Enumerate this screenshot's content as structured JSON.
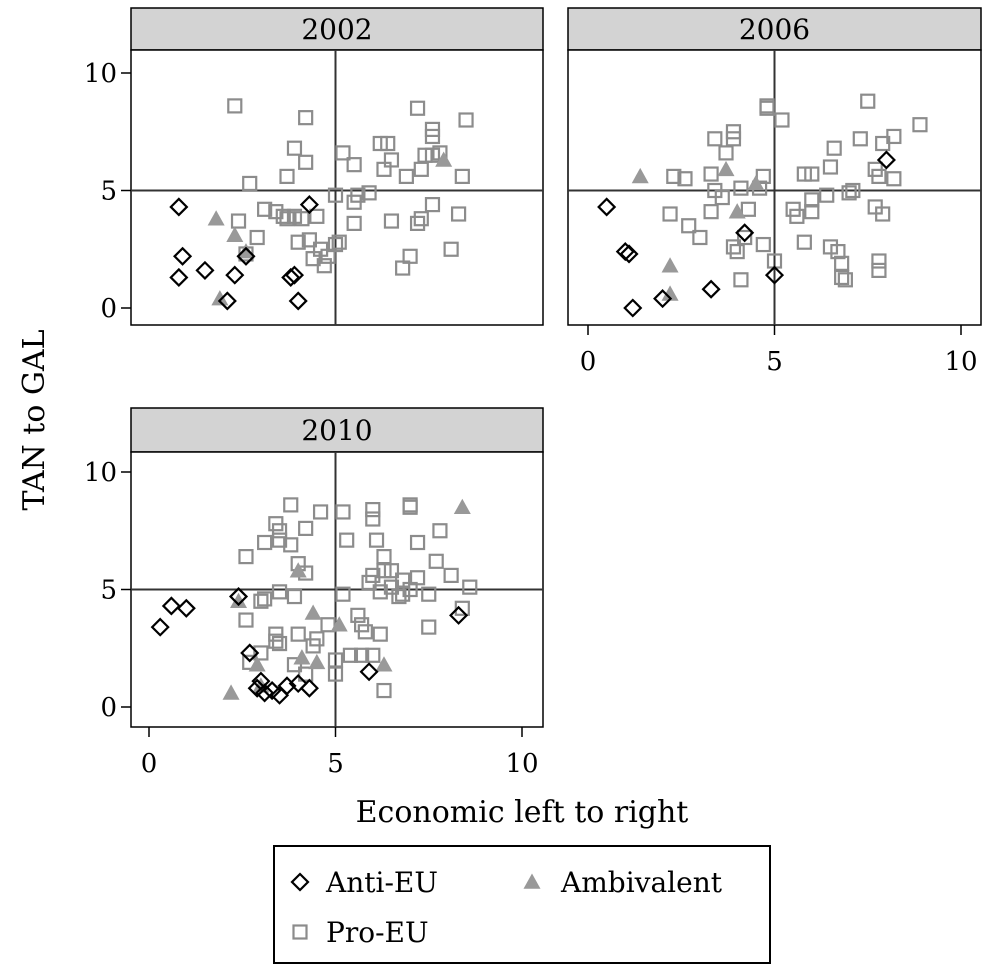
{
  "chart_data": {
    "type": "scatter",
    "ylabel": "TAN to GAL",
    "xlabel": "Economic left to right",
    "xlim": [
      0,
      10
    ],
    "ylim": [
      0,
      10
    ],
    "x_ticks": [
      0,
      5,
      10
    ],
    "y_ticks": [
      0,
      5,
      10
    ],
    "reference_lines": {
      "x": 5,
      "y": 5
    },
    "grid": false,
    "legend_position": "bottom",
    "legend": [
      {
        "name": "Anti-EU",
        "marker": "hollow-diamond",
        "color": "#000000"
      },
      {
        "name": "Ambivalent",
        "marker": "filled-triangle",
        "color": "#999999"
      },
      {
        "name": "Pro-EU",
        "marker": "hollow-square",
        "color": "#8c8c8c"
      }
    ],
    "panels": [
      {
        "title": "2002",
        "series": [
          {
            "name": "Anti-EU",
            "points": [
              [
                0.8,
                4.3
              ],
              [
                0.9,
                2.2
              ],
              [
                0.8,
                1.3
              ],
              [
                1.5,
                1.6
              ],
              [
                2.3,
                1.4
              ],
              [
                2.6,
                2.2
              ],
              [
                2.1,
                0.3
              ],
              [
                3.8,
                1.3
              ],
              [
                3.9,
                1.4
              ],
              [
                4.0,
                0.3
              ],
              [
                4.3,
                4.4
              ]
            ]
          },
          {
            "name": "Ambivalent",
            "points": [
              [
                1.8,
                3.8
              ],
              [
                2.3,
                3.1
              ],
              [
                2.6,
                2.4
              ],
              [
                1.9,
                0.4
              ],
              [
                7.9,
                6.3
              ]
            ]
          },
          {
            "name": "Pro-EU",
            "points": [
              [
                2.3,
                8.6
              ],
              [
                4.2,
                8.1
              ],
              [
                7.2,
                8.5
              ],
              [
                8.5,
                8.0
              ],
              [
                7.6,
                7.6
              ],
              [
                7.6,
                7.3
              ],
              [
                5.2,
                6.6
              ],
              [
                6.2,
                7.0
              ],
              [
                6.4,
                7.0
              ],
              [
                3.9,
                6.8
              ],
              [
                4.2,
                6.2
              ],
              [
                5.5,
                6.1
              ],
              [
                6.5,
                6.3
              ],
              [
                7.4,
                6.5
              ],
              [
                7.6,
                6.5
              ],
              [
                7.8,
                6.6
              ],
              [
                7.3,
                5.9
              ],
              [
                6.9,
                5.6
              ],
              [
                8.4,
                5.6
              ],
              [
                6.3,
                5.9
              ],
              [
                2.7,
                5.3
              ],
              [
                3.7,
                5.6
              ],
              [
                5.9,
                4.9
              ],
              [
                5.6,
                4.8
              ],
              [
                5.0,
                4.8
              ],
              [
                5.5,
                4.5
              ],
              [
                3.1,
                4.2
              ],
              [
                3.4,
                4.1
              ],
              [
                3.6,
                3.9
              ],
              [
                3.9,
                3.9
              ],
              [
                4.1,
                3.8
              ],
              [
                4.5,
                3.9
              ],
              [
                3.7,
                3.8
              ],
              [
                2.4,
                3.7
              ],
              [
                2.9,
                3.0
              ],
              [
                2.6,
                2.3
              ],
              [
                4.0,
                2.8
              ],
              [
                4.3,
                2.9
              ],
              [
                4.6,
                2.5
              ],
              [
                4.8,
                2.2
              ],
              [
                5.0,
                2.7
              ],
              [
                5.1,
                2.8
              ],
              [
                4.4,
                2.1
              ],
              [
                4.7,
                1.8
              ],
              [
                5.5,
                3.6
              ],
              [
                6.5,
                3.7
              ],
              [
                7.2,
                3.6
              ],
              [
                7.3,
                3.8
              ],
              [
                7.6,
                4.4
              ],
              [
                8.3,
                4.0
              ],
              [
                8.1,
                2.5
              ],
              [
                7.0,
                2.2
              ],
              [
                6.8,
                1.7
              ]
            ]
          }
        ]
      },
      {
        "title": "2006",
        "series": [
          {
            "name": "Anti-EU",
            "points": [
              [
                0.5,
                4.3
              ],
              [
                1.0,
                2.4
              ],
              [
                1.1,
                2.3
              ],
              [
                1.2,
                0.0
              ],
              [
                2.0,
                0.4
              ],
              [
                3.3,
                0.8
              ],
              [
                4.2,
                3.2
              ],
              [
                5.0,
                1.4
              ],
              [
                8.0,
                6.3
              ]
            ]
          },
          {
            "name": "Ambivalent",
            "points": [
              [
                1.4,
                5.6
              ],
              [
                2.2,
                1.8
              ],
              [
                2.2,
                0.6
              ],
              [
                3.7,
                5.9
              ],
              [
                4.0,
                4.1
              ],
              [
                4.5,
                5.3
              ]
            ]
          },
          {
            "name": "Pro-EU",
            "points": [
              [
                7.5,
                8.8
              ],
              [
                8.9,
                7.8
              ],
              [
                4.8,
                8.6
              ],
              [
                4.8,
                8.5
              ],
              [
                5.2,
                8.0
              ],
              [
                3.4,
                7.2
              ],
              [
                3.9,
                7.2
              ],
              [
                3.9,
                7.5
              ],
              [
                7.3,
                7.2
              ],
              [
                7.9,
                7.0
              ],
              [
                8.2,
                7.3
              ],
              [
                3.7,
                6.6
              ],
              [
                6.6,
                6.8
              ],
              [
                6.5,
                6.0
              ],
              [
                5.8,
                5.7
              ],
              [
                6.0,
                5.7
              ],
              [
                7.7,
                5.9
              ],
              [
                7.8,
                5.6
              ],
              [
                8.2,
                5.5
              ],
              [
                2.3,
                5.6
              ],
              [
                2.6,
                5.5
              ],
              [
                3.3,
                5.7
              ],
              [
                3.4,
                5.0
              ],
              [
                4.1,
                5.1
              ],
              [
                4.7,
                5.6
              ],
              [
                4.6,
                5.1
              ],
              [
                5.5,
                4.2
              ],
              [
                6.0,
                4.6
              ],
              [
                6.4,
                4.8
              ],
              [
                7.1,
                5.0
              ],
              [
                7.0,
                4.9
              ],
              [
                2.2,
                4.0
              ],
              [
                3.3,
                4.1
              ],
              [
                3.6,
                4.7
              ],
              [
                4.3,
                4.2
              ],
              [
                5.6,
                3.9
              ],
              [
                6.0,
                4.1
              ],
              [
                7.7,
                4.3
              ],
              [
                7.9,
                4.0
              ],
              [
                2.7,
                3.5
              ],
              [
                3.0,
                3.0
              ],
              [
                4.0,
                2.4
              ],
              [
                4.2,
                3.0
              ],
              [
                3.9,
                2.6
              ],
              [
                4.7,
                2.7
              ],
              [
                5.0,
                2.0
              ],
              [
                5.8,
                2.8
              ],
              [
                6.5,
                2.6
              ],
              [
                6.7,
                2.4
              ],
              [
                6.8,
                1.9
              ],
              [
                6.9,
                1.2
              ],
              [
                6.8,
                1.3
              ],
              [
                7.8,
                2.0
              ],
              [
                7.8,
                1.6
              ],
              [
                4.1,
                1.2
              ]
            ]
          }
        ]
      },
      {
        "title": "2010",
        "series": [
          {
            "name": "Anti-EU",
            "points": [
              [
                0.3,
                3.4
              ],
              [
                0.6,
                4.3
              ],
              [
                1.0,
                4.2
              ],
              [
                2.4,
                4.7
              ],
              [
                2.7,
                2.3
              ],
              [
                2.9,
                0.8
              ],
              [
                3.0,
                1.1
              ],
              [
                3.1,
                0.6
              ],
              [
                3.3,
                0.7
              ],
              [
                3.5,
                0.5
              ],
              [
                3.7,
                0.9
              ],
              [
                4.0,
                1.0
              ],
              [
                4.3,
                0.8
              ],
              [
                5.9,
                1.5
              ],
              [
                8.3,
                3.9
              ]
            ]
          },
          {
            "name": "Ambivalent",
            "points": [
              [
                2.2,
                0.6
              ],
              [
                2.9,
                1.8
              ],
              [
                3.0,
                0.9
              ],
              [
                2.4,
                4.5
              ],
              [
                4.0,
                5.8
              ],
              [
                4.1,
                2.1
              ],
              [
                4.4,
                4.0
              ],
              [
                4.5,
                1.9
              ],
              [
                5.1,
                3.5
              ],
              [
                6.3,
                1.8
              ],
              [
                8.4,
                8.5
              ]
            ]
          },
          {
            "name": "Pro-EU",
            "points": [
              [
                3.8,
                8.6
              ],
              [
                4.6,
                8.3
              ],
              [
                5.2,
                8.3
              ],
              [
                6.0,
                8.4
              ],
              [
                6.0,
                8.0
              ],
              [
                7.0,
                8.5
              ],
              [
                7.0,
                8.6
              ],
              [
                7.8,
                7.5
              ],
              [
                3.4,
                7.8
              ],
              [
                3.5,
                7.5
              ],
              [
                4.2,
                7.6
              ],
              [
                3.1,
                7.0
              ],
              [
                3.5,
                7.1
              ],
              [
                3.8,
                6.9
              ],
              [
                5.3,
                7.1
              ],
              [
                6.1,
                7.1
              ],
              [
                7.2,
                7.0
              ],
              [
                2.6,
                6.4
              ],
              [
                4.0,
                6.1
              ],
              [
                6.3,
                6.4
              ],
              [
                7.7,
                6.2
              ],
              [
                8.1,
                5.6
              ],
              [
                4.2,
                5.7
              ],
              [
                6.0,
                5.6
              ],
              [
                6.3,
                5.8
              ],
              [
                6.5,
                5.8
              ],
              [
                5.9,
                5.3
              ],
              [
                6.8,
                5.4
              ],
              [
                7.2,
                5.5
              ],
              [
                8.6,
                5.1
              ],
              [
                3.0,
                4.5
              ],
              [
                3.1,
                4.6
              ],
              [
                3.5,
                4.9
              ],
              [
                3.9,
                4.7
              ],
              [
                5.2,
                4.8
              ],
              [
                6.2,
                4.9
              ],
              [
                6.5,
                5.1
              ],
              [
                6.8,
                4.8
              ],
              [
                7.0,
                5.0
              ],
              [
                7.5,
                4.8
              ],
              [
                6.7,
                4.7
              ],
              [
                2.6,
                3.7
              ],
              [
                3.4,
                3.1
              ],
              [
                3.4,
                2.8
              ],
              [
                3.5,
                2.7
              ],
              [
                4.0,
                3.1
              ],
              [
                4.4,
                2.6
              ],
              [
                4.5,
                2.9
              ],
              [
                4.8,
                3.5
              ],
              [
                5.6,
                3.9
              ],
              [
                5.7,
                3.5
              ],
              [
                5.8,
                3.2
              ],
              [
                6.2,
                3.1
              ],
              [
                7.5,
                3.4
              ],
              [
                8.4,
                4.2
              ],
              [
                2.7,
                1.9
              ],
              [
                3.0,
                2.3
              ],
              [
                3.9,
                1.8
              ],
              [
                4.2,
                1.4
              ],
              [
                5.0,
                2.0
              ],
              [
                5.4,
                2.2
              ],
              [
                5.7,
                2.2
              ],
              [
                6.0,
                2.2
              ],
              [
                5.0,
                1.4
              ],
              [
                6.3,
                0.7
              ]
            ]
          }
        ]
      }
    ]
  }
}
